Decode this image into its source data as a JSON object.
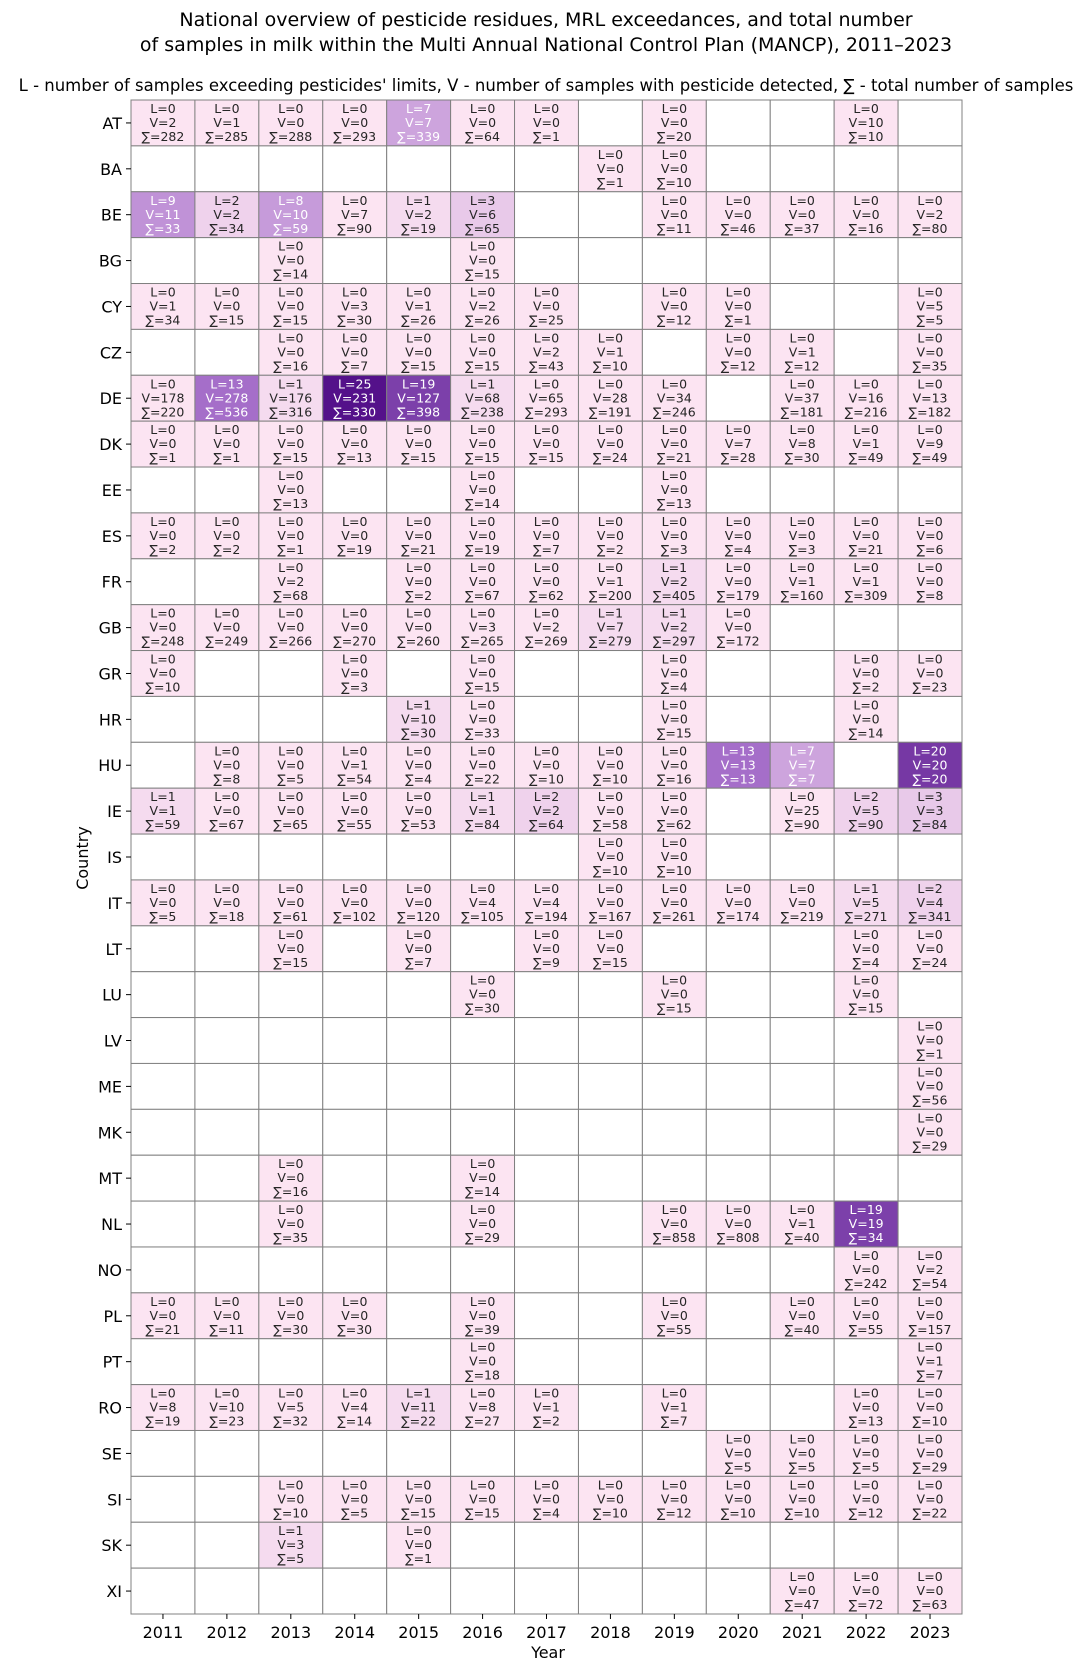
{
  "chart_data": {
    "type": "heatmap",
    "title": "National overview of pesticide residues, MRL exceedances, and total number\nof samples in milk within the Multi Annual National Control Plan (MANCP), 2011–2023",
    "subtitle": "L - number of samples exceeding pesticides' limits, V - number of samples with pesticide detected, ∑ - total number of samples",
    "xlabel": "Year",
    "ylabel": "Country",
    "x": [
      "2011",
      "2012",
      "2013",
      "2014",
      "2015",
      "2016",
      "2017",
      "2018",
      "2019",
      "2020",
      "2021",
      "2022",
      "2023"
    ],
    "y": [
      "AT",
      "BA",
      "BE",
      "BG",
      "CY",
      "CZ",
      "DE",
      "DK",
      "EE",
      "ES",
      "FR",
      "GB",
      "GR",
      "HR",
      "HU",
      "IE",
      "IS",
      "IT",
      "LT",
      "LU",
      "LV",
      "ME",
      "MK",
      "MT",
      "NL",
      "NO",
      "PL",
      "PT",
      "RO",
      "SE",
      "SI",
      "SK",
      "XI"
    ],
    "cells": [
      [
        "AT",
        "2011",
        0,
        2,
        282
      ],
      [
        "AT",
        "2012",
        0,
        1,
        285
      ],
      [
        "AT",
        "2013",
        0,
        0,
        288
      ],
      [
        "AT",
        "2014",
        0,
        0,
        293
      ],
      [
        "AT",
        "2015",
        7,
        7,
        339
      ],
      [
        "AT",
        "2016",
        0,
        0,
        64
      ],
      [
        "AT",
        "2017",
        0,
        0,
        1
      ],
      [
        "AT",
        "2019",
        0,
        0,
        20
      ],
      [
        "AT",
        "2022",
        0,
        10,
        10
      ],
      [
        "BA",
        "2018",
        0,
        0,
        1
      ],
      [
        "BA",
        "2019",
        0,
        0,
        10
      ],
      [
        "BE",
        "2011",
        9,
        11,
        33
      ],
      [
        "BE",
        "2012",
        2,
        2,
        34
      ],
      [
        "BE",
        "2013",
        8,
        10,
        59
      ],
      [
        "BE",
        "2014",
        0,
        7,
        90
      ],
      [
        "BE",
        "2015",
        1,
        2,
        19
      ],
      [
        "BE",
        "2016",
        3,
        6,
        65
      ],
      [
        "BE",
        "2019",
        0,
        0,
        11
      ],
      [
        "BE",
        "2020",
        0,
        0,
        46
      ],
      [
        "BE",
        "2021",
        0,
        0,
        37
      ],
      [
        "BE",
        "2022",
        0,
        0,
        16
      ],
      [
        "BE",
        "2023",
        0,
        2,
        80
      ],
      [
        "BG",
        "2013",
        0,
        0,
        14
      ],
      [
        "BG",
        "2016",
        0,
        0,
        15
      ],
      [
        "CY",
        "2011",
        0,
        1,
        34
      ],
      [
        "CY",
        "2012",
        0,
        0,
        15
      ],
      [
        "CY",
        "2013",
        0,
        0,
        15
      ],
      [
        "CY",
        "2014",
        0,
        3,
        30
      ],
      [
        "CY",
        "2015",
        0,
        1,
        26
      ],
      [
        "CY",
        "2016",
        0,
        2,
        26
      ],
      [
        "CY",
        "2017",
        0,
        0,
        25
      ],
      [
        "CY",
        "2019",
        0,
        0,
        12
      ],
      [
        "CY",
        "2020",
        0,
        0,
        1
      ],
      [
        "CY",
        "2023",
        0,
        5,
        5
      ],
      [
        "CZ",
        "2013",
        0,
        0,
        16
      ],
      [
        "CZ",
        "2014",
        0,
        0,
        7
      ],
      [
        "CZ",
        "2015",
        0,
        0,
        15
      ],
      [
        "CZ",
        "2016",
        0,
        0,
        15
      ],
      [
        "CZ",
        "2017",
        0,
        2,
        43
      ],
      [
        "CZ",
        "2018",
        0,
        1,
        10
      ],
      [
        "CZ",
        "2020",
        0,
        0,
        12
      ],
      [
        "CZ",
        "2021",
        0,
        1,
        12
      ],
      [
        "CZ",
        "2023",
        0,
        0,
        35
      ],
      [
        "DE",
        "2011",
        0,
        178,
        220
      ],
      [
        "DE",
        "2012",
        13,
        278,
        536
      ],
      [
        "DE",
        "2013",
        1,
        176,
        316
      ],
      [
        "DE",
        "2014",
        25,
        231,
        330
      ],
      [
        "DE",
        "2015",
        19,
        127,
        398
      ],
      [
        "DE",
        "2016",
        1,
        68,
        238
      ],
      [
        "DE",
        "2017",
        0,
        65,
        293
      ],
      [
        "DE",
        "2018",
        0,
        28,
        191
      ],
      [
        "DE",
        "2019",
        0,
        34,
        246
      ],
      [
        "DE",
        "2021",
        0,
        37,
        181
      ],
      [
        "DE",
        "2022",
        0,
        16,
        216
      ],
      [
        "DE",
        "2023",
        0,
        13,
        182
      ],
      [
        "DK",
        "2011",
        0,
        0,
        1
      ],
      [
        "DK",
        "2012",
        0,
        0,
        1
      ],
      [
        "DK",
        "2013",
        0,
        0,
        15
      ],
      [
        "DK",
        "2014",
        0,
        0,
        13
      ],
      [
        "DK",
        "2015",
        0,
        0,
        15
      ],
      [
        "DK",
        "2016",
        0,
        0,
        15
      ],
      [
        "DK",
        "2017",
        0,
        0,
        15
      ],
      [
        "DK",
        "2018",
        0,
        0,
        24
      ],
      [
        "DK",
        "2019",
        0,
        0,
        21
      ],
      [
        "DK",
        "2020",
        0,
        7,
        28
      ],
      [
        "DK",
        "2021",
        0,
        8,
        30
      ],
      [
        "DK",
        "2022",
        0,
        1,
        49
      ],
      [
        "DK",
        "2023",
        0,
        9,
        49
      ],
      [
        "EE",
        "2013",
        0,
        0,
        13
      ],
      [
        "EE",
        "2016",
        0,
        0,
        14
      ],
      [
        "EE",
        "2019",
        0,
        0,
        13
      ],
      [
        "ES",
        "2011",
        0,
        0,
        2
      ],
      [
        "ES",
        "2012",
        0,
        0,
        2
      ],
      [
        "ES",
        "2013",
        0,
        0,
        1
      ],
      [
        "ES",
        "2014",
        0,
        0,
        19
      ],
      [
        "ES",
        "2015",
        0,
        0,
        21
      ],
      [
        "ES",
        "2016",
        0,
        0,
        19
      ],
      [
        "ES",
        "2017",
        0,
        0,
        7
      ],
      [
        "ES",
        "2018",
        0,
        0,
        2
      ],
      [
        "ES",
        "2019",
        0,
        0,
        3
      ],
      [
        "ES",
        "2020",
        0,
        0,
        4
      ],
      [
        "ES",
        "2021",
        0,
        0,
        3
      ],
      [
        "ES",
        "2022",
        0,
        0,
        21
      ],
      [
        "ES",
        "2023",
        0,
        0,
        6
      ],
      [
        "FR",
        "2013",
        0,
        2,
        68
      ],
      [
        "FR",
        "2015",
        0,
        0,
        2
      ],
      [
        "FR",
        "2016",
        0,
        0,
        67
      ],
      [
        "FR",
        "2017",
        0,
        0,
        62
      ],
      [
        "FR",
        "2018",
        0,
        1,
        200
      ],
      [
        "FR",
        "2019",
        1,
        2,
        405
      ],
      [
        "FR",
        "2020",
        0,
        0,
        179
      ],
      [
        "FR",
        "2021",
        0,
        1,
        160
      ],
      [
        "FR",
        "2022",
        0,
        1,
        309
      ],
      [
        "FR",
        "2023",
        0,
        0,
        8
      ],
      [
        "GB",
        "2011",
        0,
        0,
        248
      ],
      [
        "GB",
        "2012",
        0,
        0,
        249
      ],
      [
        "GB",
        "2013",
        0,
        0,
        266
      ],
      [
        "GB",
        "2014",
        0,
        0,
        270
      ],
      [
        "GB",
        "2015",
        0,
        0,
        260
      ],
      [
        "GB",
        "2016",
        0,
        3,
        265
      ],
      [
        "GB",
        "2017",
        0,
        2,
        269
      ],
      [
        "GB",
        "2018",
        1,
        7,
        279
      ],
      [
        "GB",
        "2019",
        1,
        2,
        297
      ],
      [
        "GB",
        "2020",
        0,
        0,
        172
      ],
      [
        "GR",
        "2011",
        0,
        0,
        10
      ],
      [
        "GR",
        "2014",
        0,
        0,
        3
      ],
      [
        "GR",
        "2016",
        0,
        0,
        15
      ],
      [
        "GR",
        "2019",
        0,
        0,
        4
      ],
      [
        "GR",
        "2022",
        0,
        0,
        2
      ],
      [
        "GR",
        "2023",
        0,
        0,
        23
      ],
      [
        "HR",
        "2015",
        1,
        10,
        30
      ],
      [
        "HR",
        "2016",
        0,
        0,
        33
      ],
      [
        "HR",
        "2019",
        0,
        0,
        15
      ],
      [
        "HR",
        "2022",
        0,
        0,
        14
      ],
      [
        "HU",
        "2012",
        0,
        0,
        8
      ],
      [
        "HU",
        "2013",
        0,
        0,
        5
      ],
      [
        "HU",
        "2014",
        0,
        1,
        54
      ],
      [
        "HU",
        "2015",
        0,
        0,
        4
      ],
      [
        "HU",
        "2016",
        0,
        0,
        22
      ],
      [
        "HU",
        "2017",
        0,
        0,
        10
      ],
      [
        "HU",
        "2018",
        0,
        0,
        10
      ],
      [
        "HU",
        "2019",
        0,
        0,
        16
      ],
      [
        "HU",
        "2020",
        13,
        13,
        13
      ],
      [
        "HU",
        "2021",
        7,
        7,
        7
      ],
      [
        "HU",
        "2023",
        20,
        20,
        20
      ],
      [
        "IE",
        "2011",
        1,
        1,
        59
      ],
      [
        "IE",
        "2012",
        0,
        0,
        67
      ],
      [
        "IE",
        "2013",
        0,
        0,
        65
      ],
      [
        "IE",
        "2014",
        0,
        0,
        55
      ],
      [
        "IE",
        "2015",
        0,
        0,
        53
      ],
      [
        "IE",
        "2016",
        1,
        1,
        84
      ],
      [
        "IE",
        "2017",
        2,
        2,
        64
      ],
      [
        "IE",
        "2018",
        0,
        0,
        58
      ],
      [
        "IE",
        "2019",
        0,
        0,
        62
      ],
      [
        "IE",
        "2021",
        0,
        25,
        90
      ],
      [
        "IE",
        "2022",
        2,
        5,
        90
      ],
      [
        "IE",
        "2023",
        3,
        3,
        84
      ],
      [
        "IS",
        "2018",
        0,
        0,
        10
      ],
      [
        "IS",
        "2019",
        0,
        0,
        10
      ],
      [
        "IT",
        "2011",
        0,
        0,
        5
      ],
      [
        "IT",
        "2012",
        0,
        0,
        18
      ],
      [
        "IT",
        "2013",
        0,
        0,
        61
      ],
      [
        "IT",
        "2014",
        0,
        0,
        102
      ],
      [
        "IT",
        "2015",
        0,
        0,
        120
      ],
      [
        "IT",
        "2016",
        0,
        4,
        105
      ],
      [
        "IT",
        "2017",
        0,
        4,
        194
      ],
      [
        "IT",
        "2018",
        0,
        0,
        167
      ],
      [
        "IT",
        "2019",
        0,
        0,
        261
      ],
      [
        "IT",
        "2020",
        0,
        0,
        174
      ],
      [
        "IT",
        "2021",
        0,
        0,
        219
      ],
      [
        "IT",
        "2022",
        1,
        5,
        271
      ],
      [
        "IT",
        "2023",
        2,
        4,
        341
      ],
      [
        "LT",
        "2013",
        0,
        0,
        15
      ],
      [
        "LT",
        "2015",
        0,
        0,
        7
      ],
      [
        "LT",
        "2017",
        0,
        0,
        9
      ],
      [
        "LT",
        "2018",
        0,
        0,
        15
      ],
      [
        "LT",
        "2022",
        0,
        0,
        4
      ],
      [
        "LT",
        "2023",
        0,
        0,
        24
      ],
      [
        "LU",
        "2016",
        0,
        0,
        30
      ],
      [
        "LU",
        "2019",
        0,
        0,
        15
      ],
      [
        "LU",
        "2022",
        0,
        0,
        15
      ],
      [
        "LV",
        "2023",
        0,
        0,
        1
      ],
      [
        "ME",
        "2023",
        0,
        0,
        56
      ],
      [
        "MK",
        "2023",
        0,
        0,
        29
      ],
      [
        "MT",
        "2013",
        0,
        0,
        16
      ],
      [
        "MT",
        "2016",
        0,
        0,
        14
      ],
      [
        "NL",
        "2013",
        0,
        0,
        35
      ],
      [
        "NL",
        "2016",
        0,
        0,
        29
      ],
      [
        "NL",
        "2019",
        0,
        0,
        858
      ],
      [
        "NL",
        "2020",
        0,
        0,
        808
      ],
      [
        "NL",
        "2021",
        0,
        1,
        40
      ],
      [
        "NL",
        "2022",
        19,
        19,
        34
      ],
      [
        "NO",
        "2022",
        0,
        0,
        242
      ],
      [
        "NO",
        "2023",
        0,
        2,
        54
      ],
      [
        "PL",
        "2011",
        0,
        0,
        21
      ],
      [
        "PL",
        "2012",
        0,
        0,
        11
      ],
      [
        "PL",
        "2013",
        0,
        0,
        30
      ],
      [
        "PL",
        "2014",
        0,
        0,
        30
      ],
      [
        "PL",
        "2016",
        0,
        0,
        39
      ],
      [
        "PL",
        "2019",
        0,
        0,
        55
      ],
      [
        "PL",
        "2021",
        0,
        0,
        40
      ],
      [
        "PL",
        "2022",
        0,
        0,
        55
      ],
      [
        "PL",
        "2023",
        0,
        0,
        157
      ],
      [
        "PT",
        "2016",
        0,
        0,
        18
      ],
      [
        "PT",
        "2023",
        0,
        1,
        7
      ],
      [
        "RO",
        "2011",
        0,
        8,
        19
      ],
      [
        "RO",
        "2012",
        0,
        10,
        23
      ],
      [
        "RO",
        "2013",
        0,
        5,
        32
      ],
      [
        "RO",
        "2014",
        0,
        4,
        14
      ],
      [
        "RO",
        "2015",
        1,
        11,
        22
      ],
      [
        "RO",
        "2016",
        0,
        8,
        27
      ],
      [
        "RO",
        "2017",
        0,
        1,
        2
      ],
      [
        "RO",
        "2019",
        0,
        1,
        7
      ],
      [
        "RO",
        "2022",
        0,
        0,
        13
      ],
      [
        "RO",
        "2023",
        0,
        0,
        10
      ],
      [
        "SE",
        "2020",
        0,
        0,
        5
      ],
      [
        "SE",
        "2021",
        0,
        0,
        5
      ],
      [
        "SE",
        "2022",
        0,
        0,
        5
      ],
      [
        "SE",
        "2023",
        0,
        0,
        29
      ],
      [
        "SI",
        "2013",
        0,
        0,
        10
      ],
      [
        "SI",
        "2014",
        0,
        0,
        5
      ],
      [
        "SI",
        "2015",
        0,
        0,
        15
      ],
      [
        "SI",
        "2016",
        0,
        0,
        15
      ],
      [
        "SI",
        "2017",
        0,
        0,
        4
      ],
      [
        "SI",
        "2018",
        0,
        0,
        10
      ],
      [
        "SI",
        "2019",
        0,
        0,
        12
      ],
      [
        "SI",
        "2020",
        0,
        0,
        10
      ],
      [
        "SI",
        "2021",
        0,
        0,
        10
      ],
      [
        "SI",
        "2022",
        0,
        0,
        12
      ],
      [
        "SI",
        "2023",
        0,
        0,
        22
      ],
      [
        "SK",
        "2013",
        1,
        3,
        5
      ],
      [
        "SK",
        "2015",
        0,
        0,
        1
      ],
      [
        "XI",
        "2021",
        0,
        0,
        47
      ],
      [
        "XI",
        "2022",
        0,
        0,
        72
      ],
      [
        "XI",
        "2023",
        0,
        0,
        63
      ]
    ],
    "color_scale": [
      "#fce4f2",
      "#a872cc",
      "#54118a"
    ],
    "grid_color": "#808080",
    "empty_color": "#ffffff"
  }
}
